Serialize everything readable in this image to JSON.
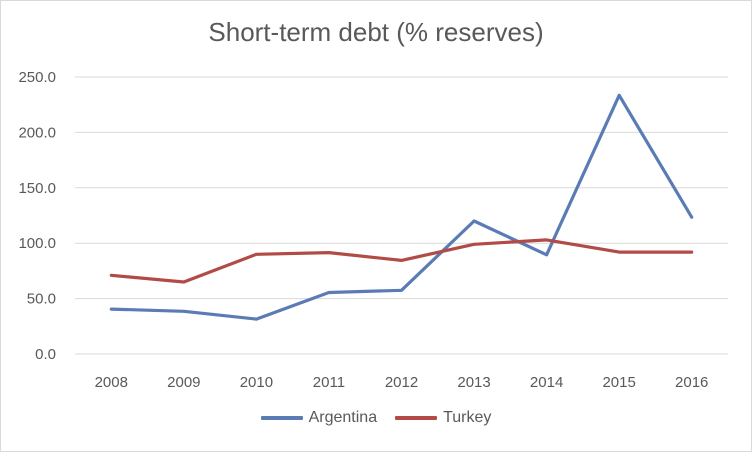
{
  "chart_data": {
    "type": "line",
    "title": "Short-term debt (% reserves)",
    "xlabel": "",
    "ylabel": "",
    "categories": [
      "2008",
      "2009",
      "2010",
      "2011",
      "2012",
      "2013",
      "2014",
      "2015",
      "2016"
    ],
    "ylim": [
      0,
      250
    ],
    "yticks": [
      "0.0",
      "50.0",
      "100.0",
      "150.0",
      "200.0",
      "250.0"
    ],
    "grid": true,
    "legend_position": "bottom",
    "series": [
      {
        "name": "Argentina",
        "color": "#5b7bb5",
        "values": [
          40.5,
          38.5,
          31.5,
          55.5,
          57.5,
          120.0,
          89.5,
          233.5,
          123.5
        ]
      },
      {
        "name": "Turkey",
        "color": "#b24b46",
        "values": [
          71.0,
          65.0,
          90.0,
          91.5,
          84.5,
          99.0,
          103.0,
          92.0,
          92.0
        ]
      }
    ]
  }
}
